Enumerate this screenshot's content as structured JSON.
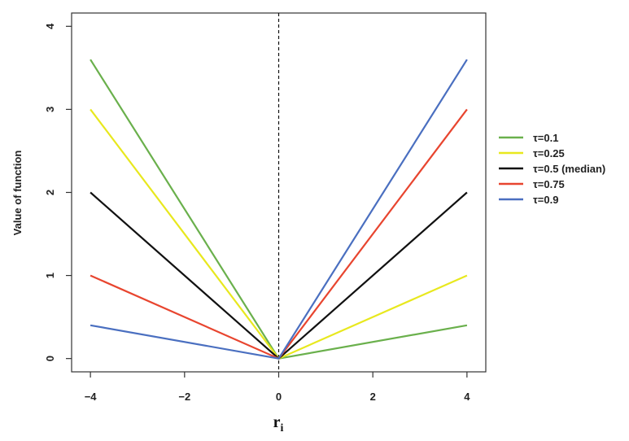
{
  "chart_data": {
    "type": "line",
    "xlabel": "r",
    "xlabel_subscript": "i",
    "ylabel": "Value of function",
    "xlim": [
      -4.4,
      4.4
    ],
    "ylim": [
      -0.16,
      4.16
    ],
    "xticks": [
      -4,
      -2,
      0,
      2,
      4
    ],
    "xtick_labels": [
      "−4",
      "−2",
      "0",
      "2",
      "4"
    ],
    "yticks": [
      0,
      1,
      2,
      3,
      4
    ],
    "ytick_labels": [
      "0",
      "1",
      "2",
      "3",
      "4"
    ],
    "vline_x": 0,
    "grid": false,
    "legend_position": "right",
    "series": [
      {
        "name": "τ=0.1",
        "color": "#6ab04c",
        "x": [
          -4,
          0,
          4
        ],
        "y": [
          3.6,
          0,
          0.4
        ]
      },
      {
        "name": "τ=0.25",
        "color": "#e8e81e",
        "x": [
          -4,
          0,
          4
        ],
        "y": [
          3.0,
          0,
          1.0
        ]
      },
      {
        "name": "τ=0.5 (median)",
        "color": "#111111",
        "x": [
          -4,
          0,
          4
        ],
        "y": [
          2.0,
          0,
          2.0
        ]
      },
      {
        "name": "τ=0.75",
        "color": "#e8452f",
        "x": [
          -4,
          0,
          4
        ],
        "y": [
          1.0,
          0,
          3.0
        ]
      },
      {
        "name": "τ=0.9",
        "color": "#4a6fc0",
        "x": [
          -4,
          0,
          4
        ],
        "y": [
          0.4,
          0,
          3.6
        ]
      }
    ]
  }
}
